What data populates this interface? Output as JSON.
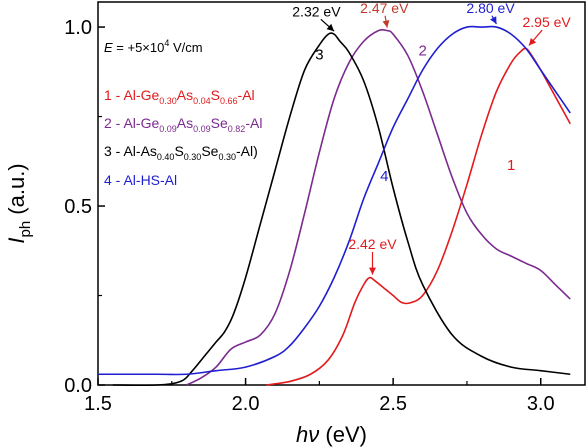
{
  "chart_data": {
    "type": "line",
    "xlabel": {
      "main": "h",
      "italic_symbol": "ν",
      "unit": " (eV)"
    },
    "ylabel": {
      "main": "I",
      "subscript": "ph",
      "unit": " (a.u.)"
    },
    "xlim": [
      1.5,
      3.15
    ],
    "ylim": [
      0.0,
      1.07
    ],
    "xticks": [
      {
        "value": 1.5,
        "label": "1.5"
      },
      {
        "value": 2.0,
        "label": "2.0"
      },
      {
        "value": 2.5,
        "label": "2.5"
      },
      {
        "value": 3.0,
        "label": "3.0"
      }
    ],
    "yticks": [
      {
        "value": 0.0,
        "label": "0.0"
      },
      {
        "value": 0.5,
        "label": "0.5"
      },
      {
        "value": 1.0,
        "label": "1.0"
      }
    ],
    "field": {
      "prefix": "E",
      "text": " = +5×10",
      "sup": "4",
      "unit": " V/cm"
    },
    "series": [
      {
        "name": "1 - Al-Ge0.30As0.04S0.66-Al",
        "label": "1",
        "color": "#e31a1c",
        "legend_parts": [
          {
            "t": "1 - Al-Ge"
          },
          {
            "t": "0.30",
            "sub": true
          },
          {
            "t": "As"
          },
          {
            "t": "0.04",
            "sub": true
          },
          {
            "t": "S"
          },
          {
            "t": "0.66",
            "sub": true
          },
          {
            "t": "-Al"
          }
        ],
        "x": [
          2.07,
          2.15,
          2.22,
          2.28,
          2.33,
          2.37,
          2.4,
          2.42,
          2.44,
          2.47,
          2.5,
          2.53,
          2.56,
          2.6,
          2.65,
          2.7,
          2.75,
          2.8,
          2.85,
          2.9,
          2.93,
          2.95,
          2.97,
          3.0,
          3.04,
          3.08,
          3.1
        ],
        "y": [
          0.0,
          0.01,
          0.03,
          0.07,
          0.14,
          0.23,
          0.28,
          0.3,
          0.29,
          0.27,
          0.25,
          0.23,
          0.23,
          0.25,
          0.32,
          0.43,
          0.56,
          0.7,
          0.82,
          0.9,
          0.93,
          0.94,
          0.92,
          0.88,
          0.82,
          0.76,
          0.73
        ]
      },
      {
        "name": "2 - Al-Ge0.09As0.09Se0.82-Al",
        "label": "2",
        "color": "#7b2a8f",
        "legend_parts": [
          {
            "t": "2 - Al-Ge"
          },
          {
            "t": "0.09",
            "sub": true
          },
          {
            "t": "As"
          },
          {
            "t": "0.09",
            "sub": true
          },
          {
            "t": "Se"
          },
          {
            "t": "0.82",
            "sub": true
          },
          {
            "t": "-Al"
          }
        ],
        "x": [
          1.8,
          1.85,
          1.9,
          1.95,
          2.0,
          2.05,
          2.1,
          2.15,
          2.2,
          2.25,
          2.3,
          2.35,
          2.4,
          2.45,
          2.48,
          2.5,
          2.55,
          2.6,
          2.65,
          2.7,
          2.75,
          2.8,
          2.85,
          2.9,
          2.95,
          3.0,
          3.05,
          3.1
        ],
        "y": [
          0.0,
          0.02,
          0.05,
          0.1,
          0.12,
          0.14,
          0.2,
          0.32,
          0.48,
          0.65,
          0.8,
          0.9,
          0.96,
          0.99,
          0.99,
          0.98,
          0.92,
          0.82,
          0.7,
          0.58,
          0.48,
          0.42,
          0.38,
          0.36,
          0.34,
          0.32,
          0.28,
          0.24
        ]
      },
      {
        "name": "3 - Al-As0.40S0.30Se0.30-Al)",
        "label": "3",
        "color": "#000000",
        "legend_parts": [
          {
            "t": "3 - Al-As"
          },
          {
            "t": "0.40",
            "sub": true
          },
          {
            "t": "S"
          },
          {
            "t": "0.30",
            "sub": true
          },
          {
            "t": "Se"
          },
          {
            "t": "0.30",
            "sub": true
          },
          {
            "t": "-Al)"
          }
        ],
        "x": [
          1.55,
          1.7,
          1.78,
          1.82,
          1.86,
          1.9,
          1.93,
          1.96,
          2.0,
          2.05,
          2.1,
          2.15,
          2.2,
          2.25,
          2.28,
          2.3,
          2.32,
          2.35,
          2.4,
          2.45,
          2.5,
          2.55,
          2.6,
          2.7,
          2.8,
          2.9,
          3.0,
          3.1
        ],
        "y": [
          0.0,
          0.0,
          0.01,
          0.04,
          0.08,
          0.12,
          0.15,
          0.2,
          0.3,
          0.45,
          0.6,
          0.75,
          0.88,
          0.95,
          0.98,
          0.98,
          0.96,
          0.93,
          0.85,
          0.72,
          0.55,
          0.4,
          0.28,
          0.14,
          0.08,
          0.05,
          0.04,
          0.03
        ]
      },
      {
        "name": "4 - Al-HS-Al",
        "label": "4",
        "color": "#1f1fd1",
        "legend_parts": [
          {
            "t": "4 - Al-HS-Al"
          }
        ],
        "x": [
          1.5,
          1.7,
          1.8,
          1.9,
          2.0,
          2.1,
          2.15,
          2.2,
          2.25,
          2.3,
          2.35,
          2.4,
          2.45,
          2.5,
          2.55,
          2.6,
          2.65,
          2.7,
          2.75,
          2.8,
          2.85,
          2.9,
          2.95,
          3.0,
          3.05,
          3.1
        ],
        "y": [
          0.03,
          0.03,
          0.03,
          0.04,
          0.05,
          0.08,
          0.11,
          0.16,
          0.22,
          0.3,
          0.4,
          0.52,
          0.62,
          0.72,
          0.8,
          0.88,
          0.94,
          0.98,
          1.0,
          1.0,
          1.0,
          0.98,
          0.94,
          0.88,
          0.82,
          0.76
        ]
      }
    ],
    "annotations": [
      {
        "text": "2.32 eV",
        "color": "#000000",
        "x": 2.3,
        "y": 0.98,
        "text_x": 2.24,
        "text_y": 1.03
      },
      {
        "text": "2.47 eV",
        "color": "#c0392b",
        "x": 2.48,
        "y": 0.99,
        "text_x": 2.47,
        "text_y": 1.04
      },
      {
        "text": "2.80 eV",
        "color": "#1f1fd1",
        "x": 2.85,
        "y": 1.0,
        "text_x": 2.83,
        "text_y": 1.04
      },
      {
        "text": "2.95 eV",
        "color": "#e31a1c",
        "x": 2.96,
        "y": 0.94,
        "text_x": 3.02,
        "text_y": 1.0
      },
      {
        "text": "2.42 eV",
        "color": "#e31a1c",
        "x": 2.43,
        "y": 0.3,
        "text_x": 2.43,
        "text_y": 0.38
      }
    ],
    "curve_labels": [
      {
        "text": "1",
        "color": "#e31a1c",
        "x": 2.9,
        "y": 0.6
      },
      {
        "text": "2",
        "color": "#7b2a8f",
        "x": 2.6,
        "y": 0.92
      },
      {
        "text": "3",
        "color": "#000000",
        "x": 2.25,
        "y": 0.91
      },
      {
        "text": "4",
        "color": "#1f1fd1",
        "x": 2.47,
        "y": 0.57
      }
    ],
    "legend_position": "left, upper-middle",
    "grid": false
  }
}
